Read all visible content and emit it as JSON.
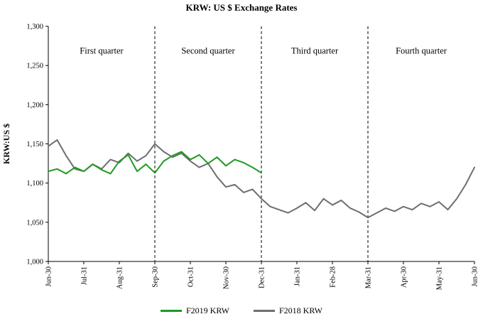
{
  "title": "KRW: US $ Exchange Rates",
  "chart_data": {
    "type": "line",
    "title": "KRW: US $ Exchange Rates",
    "xlabel": "",
    "ylabel": "KRW:US $",
    "ylim": [
      1000,
      1300
    ],
    "xlim": [
      0,
      12
    ],
    "grid": false,
    "legend_position": "bottom",
    "y_ticks": [
      {
        "value": 1000,
        "label": "1,000"
      },
      {
        "value": 1050,
        "label": "1,050"
      },
      {
        "value": 1100,
        "label": "1,100"
      },
      {
        "value": 1150,
        "label": "1,150"
      },
      {
        "value": 1200,
        "label": "1,200"
      },
      {
        "value": 1250,
        "label": "1,250"
      },
      {
        "value": 1300,
        "label": "1,300"
      }
    ],
    "x_ticks": [
      {
        "x": 0,
        "label": "Jun-30"
      },
      {
        "x": 1,
        "label": "Jul-31"
      },
      {
        "x": 2,
        "label": "Aug-31"
      },
      {
        "x": 3,
        "label": "Sep-30"
      },
      {
        "x": 4,
        "label": "Oct-31"
      },
      {
        "x": 5,
        "label": "Nov-30"
      },
      {
        "x": 6,
        "label": "Dec-31"
      },
      {
        "x": 7,
        "label": "Jan-31"
      },
      {
        "x": 8,
        "label": "Feb-28"
      },
      {
        "x": 9,
        "label": "Mar-31"
      },
      {
        "x": 10,
        "label": "Apr-30"
      },
      {
        "x": 11,
        "label": "May-31"
      },
      {
        "x": 12,
        "label": "Jun-30"
      }
    ],
    "quarter_lines": [
      3,
      6,
      9
    ],
    "quarter_labels": [
      {
        "x": 1.5,
        "y": 1265,
        "label": "First quarter"
      },
      {
        "x": 4.5,
        "y": 1265,
        "label": "Second quarter"
      },
      {
        "x": 7.5,
        "y": 1265,
        "label": "Third quarter"
      },
      {
        "x": 10.5,
        "y": 1265,
        "label": "Fourth quarter"
      }
    ],
    "series": [
      {
        "name": "F2019 KRW",
        "color": "#1f9a1f",
        "x_start": 0,
        "x_step": 0.25,
        "values": [
          1115,
          1118,
          1112,
          1120,
          1115,
          1124,
          1117,
          1112,
          1128,
          1136,
          1115,
          1124,
          1113,
          1128,
          1135,
          1140,
          1130,
          1136,
          1125,
          1133,
          1122,
          1130,
          1126,
          1120,
          1113
        ]
      },
      {
        "name": "F2018 KRW",
        "color": "#6e6e6e",
        "x_start": 0,
        "x_step": 0.25,
        "values": [
          1147,
          1155,
          1135,
          1118,
          1115,
          1124,
          1118,
          1130,
          1126,
          1138,
          1128,
          1135,
          1150,
          1140,
          1133,
          1138,
          1128,
          1120,
          1125,
          1108,
          1095,
          1098,
          1088,
          1092,
          1080,
          1070,
          1066,
          1062,
          1068,
          1075,
          1065,
          1080,
          1072,
          1078,
          1068,
          1063,
          1056,
          1062,
          1068,
          1064,
          1070,
          1066,
          1074,
          1070,
          1076,
          1066,
          1080,
          1098,
          1120
        ]
      }
    ]
  }
}
